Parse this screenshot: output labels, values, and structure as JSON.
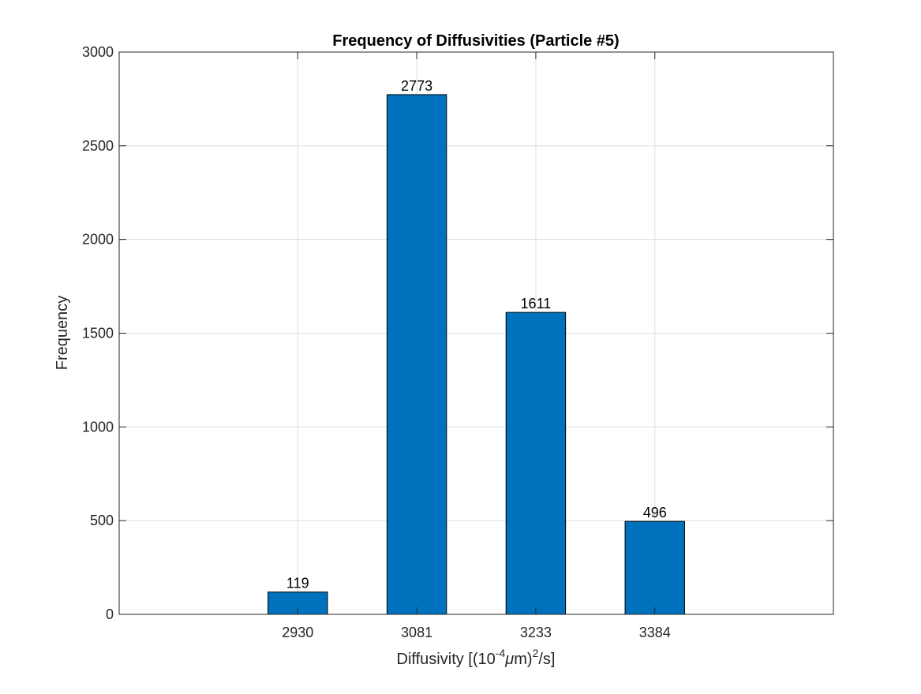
{
  "chart_data": {
    "type": "bar",
    "title": "Frequency of Diffusivities (Particle #5)",
    "xlabel": {
      "prefix": "Diffusivity [(10",
      "exp1": "-4",
      "mu": "μ",
      "mid": "m)",
      "exp2": "2",
      "suffix": "/s]"
    },
    "ylabel": "Frequency",
    "categories": [
      "2930",
      "3081",
      "3233",
      "3384"
    ],
    "values": [
      119,
      2773,
      1611,
      496
    ],
    "data_labels": [
      "119",
      "2773",
      "1611",
      "496"
    ],
    "ylim": [
      0,
      3000
    ],
    "yticks": [
      0,
      500,
      1000,
      1500,
      2000,
      2500,
      3000
    ],
    "ytick_labels": [
      "0",
      "500",
      "1000",
      "1500",
      "2000",
      "2500",
      "3000"
    ],
    "grid": true,
    "bar_color": "#0072BD",
    "bar_edge_color": "#000000"
  }
}
